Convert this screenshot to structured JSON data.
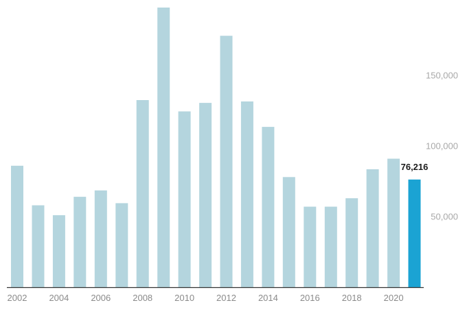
{
  "chart_data": {
    "type": "bar",
    "title": "",
    "xlabel": "",
    "ylabel": "",
    "categories": [
      "2002",
      "2003",
      "2004",
      "2005",
      "2006",
      "2007",
      "2008",
      "2009",
      "2010",
      "2011",
      "2012",
      "2013",
      "2014",
      "2015",
      "2016",
      "2017",
      "2018",
      "2019",
      "2020",
      "2021"
    ],
    "x_tick_labels": [
      "2002",
      "2004",
      "2006",
      "2008",
      "2010",
      "2012",
      "2014",
      "2016",
      "2018",
      "2020"
    ],
    "values": [
      86000,
      58000,
      51000,
      64000,
      68500,
      59500,
      132500,
      198000,
      124500,
      130500,
      178000,
      131500,
      113500,
      78000,
      57000,
      57000,
      63000,
      83500,
      91000,
      76216
    ],
    "y_ticks": [
      50000,
      100000,
      150000
    ],
    "y_tick_labels": [
      "50,000",
      "100,000",
      "150,000"
    ],
    "ylim": [
      0,
      198000
    ],
    "highlight_index": 19,
    "highlight_label": "76,216",
    "grid": false,
    "y_axis_position": "right",
    "colors": {
      "bar": "#b4d5de",
      "highlight": "#1ba3d3",
      "baseline": "#333333"
    }
  }
}
